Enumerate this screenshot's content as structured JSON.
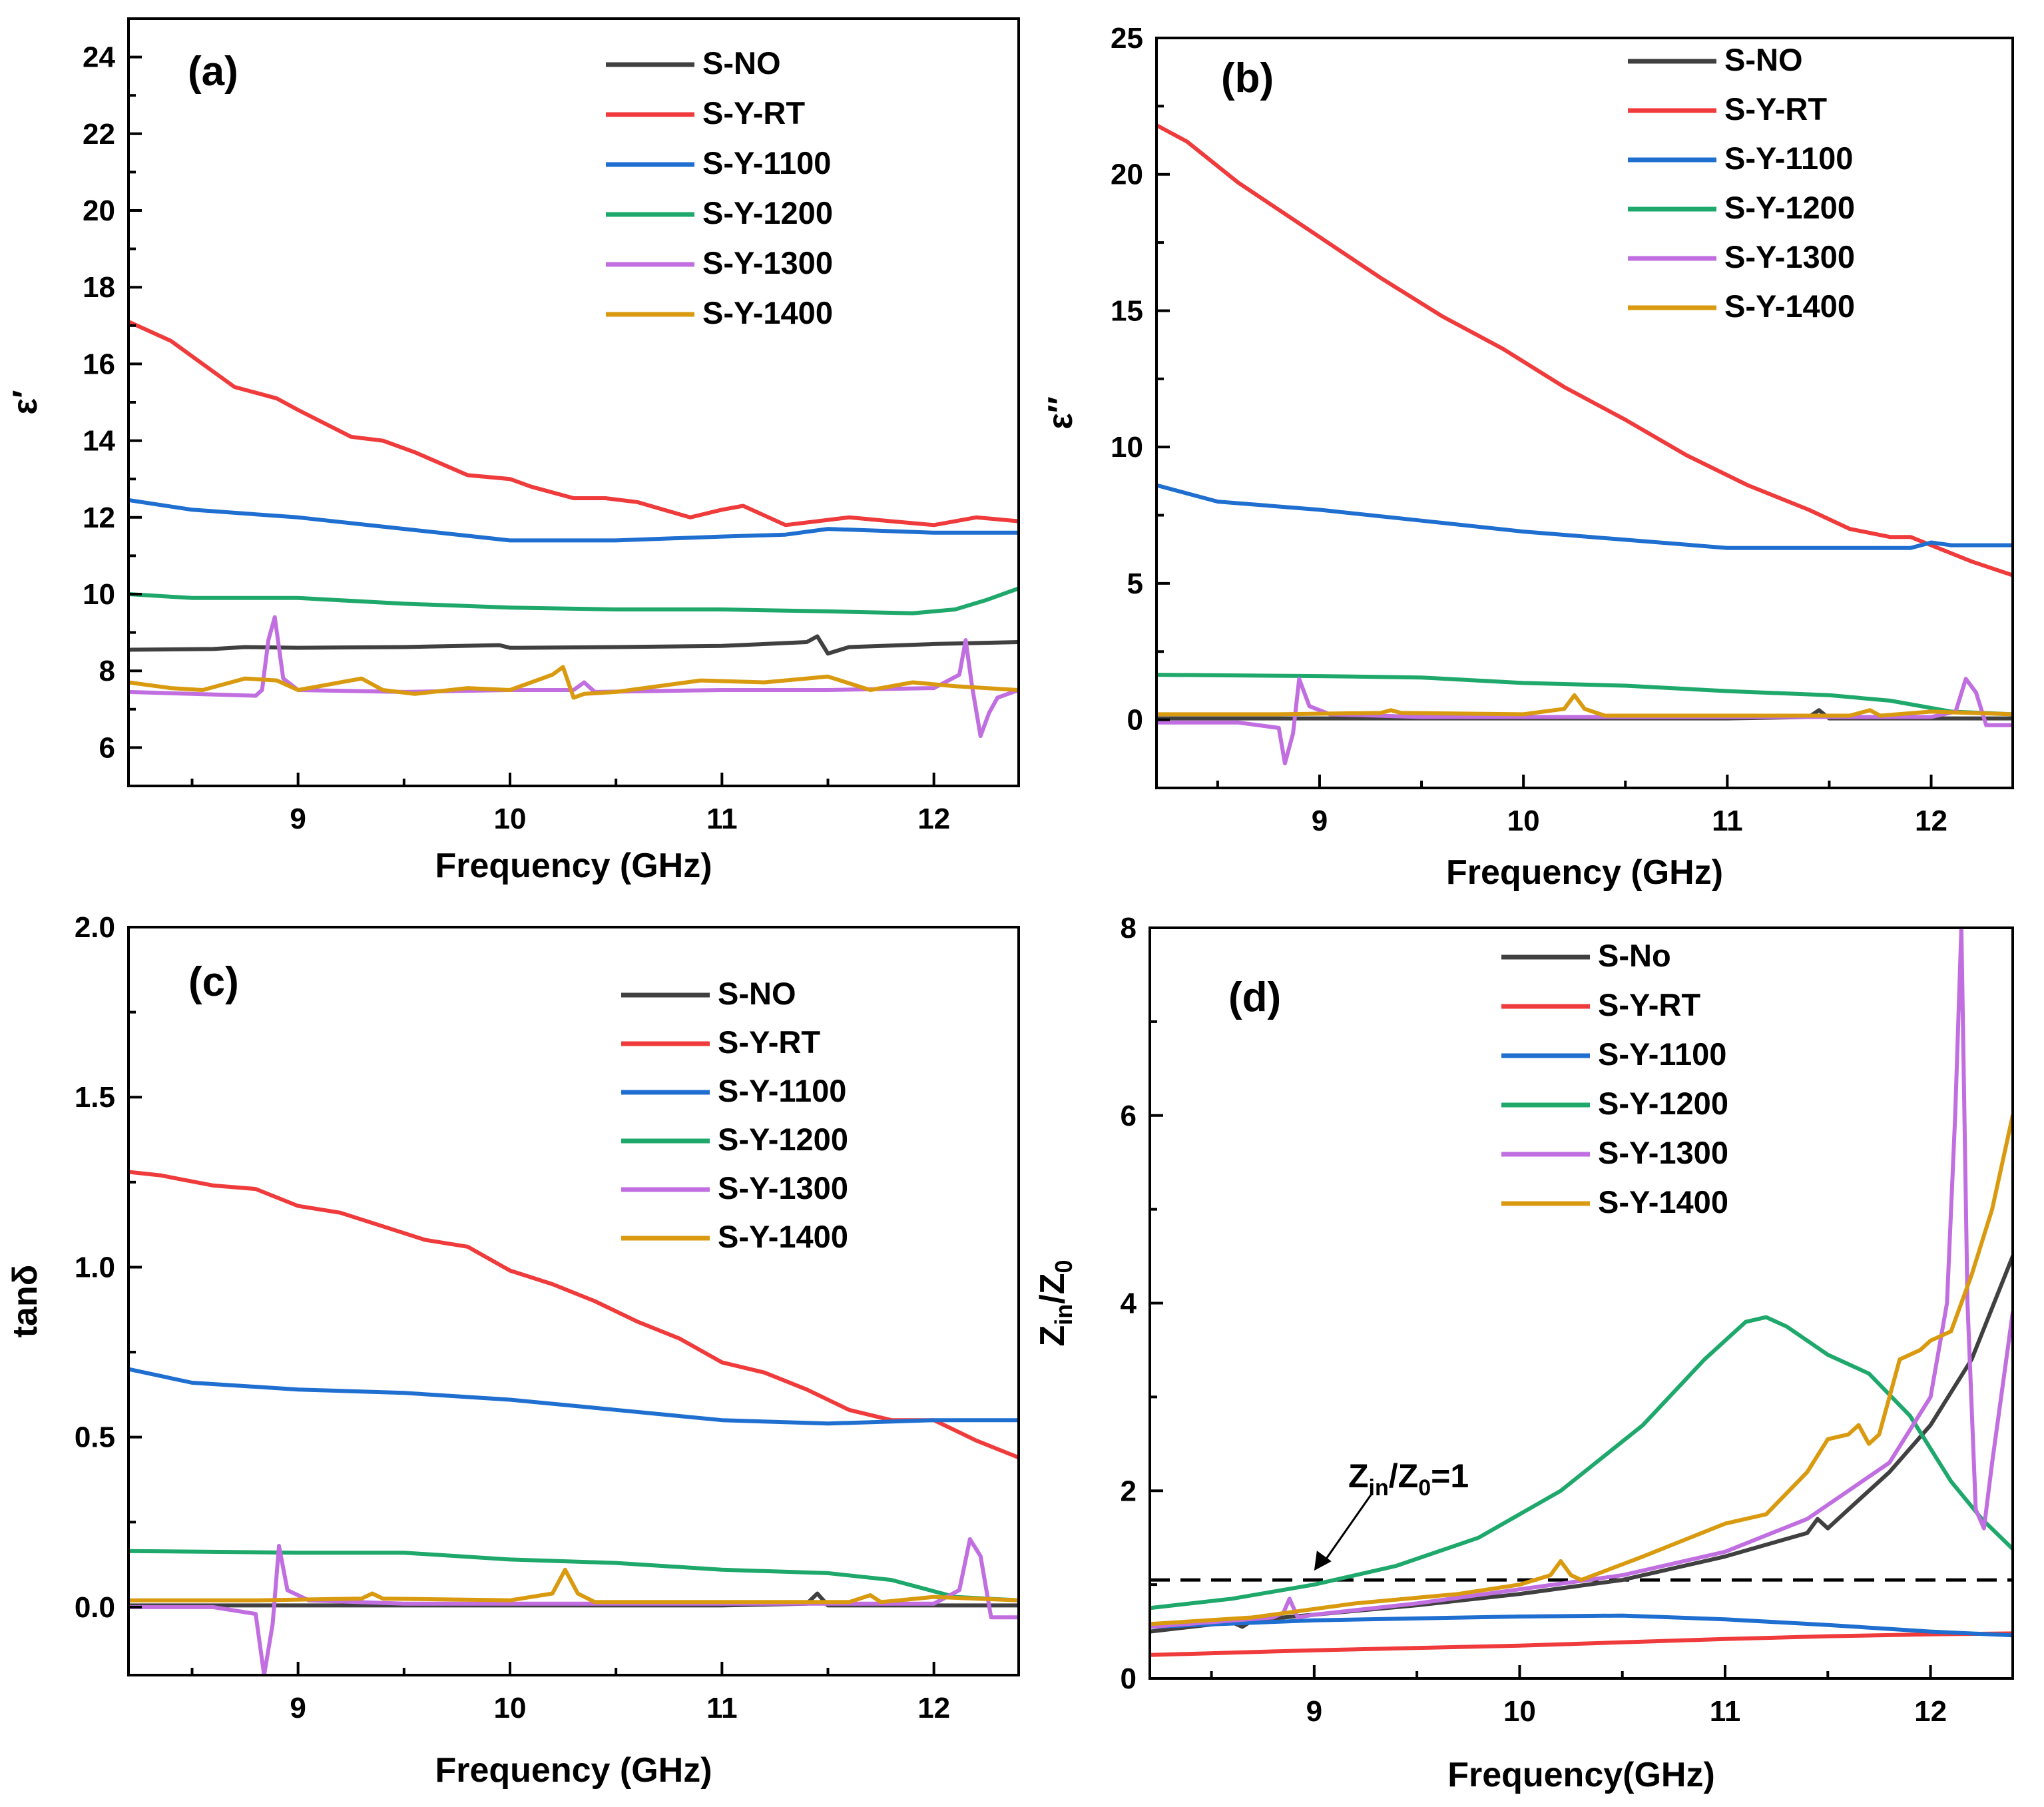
{
  "chart_data": [
    {
      "panel": "(a)",
      "type": "line",
      "xlabel": "Frequency (GHz)",
      "ylabel": "ε′",
      "xlim": [
        8.2,
        12.4
      ],
      "ylim": [
        5,
        25
      ],
      "xticks": [
        "9",
        "10",
        "11",
        "12"
      ],
      "yticks": [
        "6",
        "8",
        "10",
        "12",
        "14",
        "16",
        "18",
        "20",
        "22",
        "24"
      ],
      "legend": "top-right",
      "series": [
        {
          "name": "S-NO",
          "color": "#404040",
          "x": [
            8.2,
            8.6,
            8.75,
            9.0,
            9.5,
            9.95,
            10.0,
            10.05,
            10.5,
            11.0,
            11.4,
            11.45,
            11.5,
            11.6,
            12.0,
            12.4
          ],
          "y": [
            8.55,
            8.57,
            8.62,
            8.6,
            8.62,
            8.67,
            8.6,
            8.6,
            8.62,
            8.65,
            8.75,
            8.9,
            8.45,
            8.62,
            8.7,
            8.75
          ]
        },
        {
          "name": "S-Y-RT",
          "color": "#ef3b3b",
          "x": [
            8.2,
            8.4,
            8.5,
            8.7,
            8.9,
            9.0,
            9.25,
            9.4,
            9.55,
            9.8,
            10.0,
            10.1,
            10.3,
            10.45,
            10.6,
            10.85,
            11.0,
            11.1,
            11.3,
            11.6,
            11.8,
            12.0,
            12.2,
            12.4
          ],
          "y": [
            17.1,
            16.6,
            16.2,
            15.4,
            15.1,
            14.8,
            14.1,
            14.0,
            13.7,
            13.1,
            13.0,
            12.8,
            12.5,
            12.5,
            12.4,
            12.0,
            12.2,
            12.3,
            11.8,
            12.0,
            11.9,
            11.8,
            12.0,
            11.9
          ]
        },
        {
          "name": "S-Y-1100",
          "color": "#1f6fd1",
          "x": [
            8.2,
            8.5,
            9.0,
            9.5,
            10.0,
            10.5,
            11.0,
            11.3,
            11.5,
            12.0,
            12.4
          ],
          "y": [
            12.45,
            12.2,
            12.0,
            11.7,
            11.4,
            11.4,
            11.5,
            11.55,
            11.7,
            11.6,
            11.6
          ]
        },
        {
          "name": "S-Y-1200",
          "color": "#1ea86b",
          "x": [
            8.2,
            8.5,
            9.0,
            9.5,
            10.0,
            10.5,
            11.0,
            11.5,
            11.9,
            12.1,
            12.25,
            12.4
          ],
          "y": [
            10.0,
            9.9,
            9.9,
            9.75,
            9.65,
            9.6,
            9.6,
            9.55,
            9.5,
            9.6,
            9.85,
            10.15
          ]
        },
        {
          "name": "S-Y-1300",
          "color": "#c06ee0",
          "x": [
            8.2,
            8.5,
            8.8,
            8.83,
            8.86,
            8.89,
            8.93,
            9.0,
            9.5,
            10.0,
            10.3,
            10.35,
            10.4,
            11.0,
            11.5,
            12.0,
            12.12,
            12.15,
            12.18,
            12.22,
            12.26,
            12.3,
            12.4
          ],
          "y": [
            7.45,
            7.4,
            7.35,
            7.5,
            8.8,
            9.4,
            7.8,
            7.5,
            7.45,
            7.5,
            7.5,
            7.7,
            7.45,
            7.5,
            7.5,
            7.55,
            7.9,
            8.8,
            7.6,
            6.3,
            6.9,
            7.3,
            7.5
          ]
        },
        {
          "name": "S-Y-1400",
          "color": "#d99a10",
          "x": [
            8.2,
            8.4,
            8.55,
            8.75,
            8.9,
            9.0,
            9.3,
            9.4,
            9.55,
            9.8,
            10.0,
            10.2,
            10.25,
            10.3,
            10.35,
            10.5,
            10.9,
            11.2,
            11.5,
            11.7,
            11.9,
            12.1,
            12.4
          ],
          "y": [
            7.7,
            7.55,
            7.5,
            7.8,
            7.75,
            7.5,
            7.8,
            7.5,
            7.4,
            7.55,
            7.5,
            7.9,
            8.1,
            7.3,
            7.4,
            7.45,
            7.75,
            7.7,
            7.85,
            7.5,
            7.7,
            7.6,
            7.5
          ]
        }
      ]
    },
    {
      "panel": "(b)",
      "type": "line",
      "xlabel": "Frequency (GHz)",
      "ylabel": "ε″",
      "xlim": [
        8.2,
        12.4
      ],
      "ylim": [
        -2.5,
        25
      ],
      "xticks": [
        "9",
        "10",
        "11",
        "12"
      ],
      "yticks": [
        "0",
        "5",
        "10",
        "15",
        "20",
        "25"
      ],
      "legend": "top-right",
      "series": [
        {
          "name": "S-NO",
          "color": "#404040",
          "x": [
            8.2,
            9.0,
            10.0,
            11.0,
            11.4,
            11.45,
            11.5,
            12.0,
            12.4
          ],
          "y": [
            0.05,
            0.05,
            0.05,
            0.05,
            0.1,
            0.35,
            0.05,
            0.05,
            0.05
          ]
        },
        {
          "name": "S-Y-RT",
          "color": "#ef3b3b",
          "x": [
            8.2,
            8.35,
            8.6,
            8.9,
            9.3,
            9.6,
            9.9,
            10.2,
            10.5,
            10.8,
            11.1,
            11.4,
            11.6,
            11.8,
            11.9,
            12.0,
            12.2,
            12.4
          ],
          "y": [
            21.8,
            21.2,
            19.7,
            18.2,
            16.2,
            14.8,
            13.6,
            12.2,
            11.0,
            9.7,
            8.6,
            7.7,
            7.0,
            6.7,
            6.7,
            6.4,
            5.8,
            5.3
          ]
        },
        {
          "name": "S-Y-1100",
          "color": "#1f6fd1",
          "x": [
            8.2,
            8.5,
            9.0,
            9.5,
            10.0,
            10.5,
            11.0,
            11.5,
            11.9,
            12.0,
            12.1,
            12.4
          ],
          "y": [
            8.6,
            8.0,
            7.7,
            7.3,
            6.9,
            6.6,
            6.3,
            6.3,
            6.3,
            6.5,
            6.4,
            6.4
          ]
        },
        {
          "name": "S-Y-1200",
          "color": "#1ea86b",
          "x": [
            8.2,
            9.0,
            9.5,
            10.0,
            10.5,
            11.0,
            11.5,
            11.8,
            12.1,
            12.4
          ],
          "y": [
            1.65,
            1.6,
            1.55,
            1.35,
            1.25,
            1.05,
            0.9,
            0.7,
            0.3,
            0.2
          ]
        },
        {
          "name": "S-Y-1300",
          "color": "#c06ee0",
          "x": [
            8.2,
            8.6,
            8.8,
            8.83,
            8.87,
            8.9,
            8.95,
            9.05,
            9.5,
            10.0,
            11.0,
            12.0,
            12.12,
            12.17,
            12.22,
            12.27,
            12.3,
            12.4
          ],
          "y": [
            -0.1,
            -0.1,
            -0.3,
            -1.6,
            -0.5,
            1.5,
            0.5,
            0.2,
            0.1,
            0.1,
            0.1,
            0.1,
            0.3,
            1.5,
            1.0,
            -0.2,
            -0.2,
            -0.2
          ]
        },
        {
          "name": "S-Y-1400",
          "color": "#d99a10",
          "x": [
            8.2,
            8.8,
            9.3,
            9.35,
            9.4,
            10.0,
            10.2,
            10.25,
            10.3,
            10.4,
            11.0,
            11.6,
            11.7,
            11.75,
            12.0,
            12.4
          ],
          "y": [
            0.2,
            0.2,
            0.25,
            0.35,
            0.25,
            0.2,
            0.4,
            0.9,
            0.4,
            0.15,
            0.15,
            0.15,
            0.35,
            0.15,
            0.3,
            0.2
          ]
        }
      ]
    },
    {
      "panel": "(c)",
      "type": "line",
      "xlabel": "Frequency (GHz)",
      "ylabel": "tanδ",
      "xlim": [
        8.2,
        12.4
      ],
      "ylim": [
        -0.2,
        2.0
      ],
      "xticks": [
        "9",
        "10",
        "11",
        "12"
      ],
      "yticks": [
        "0.0",
        "0.5",
        "1.0",
        "1.5",
        "2.0"
      ],
      "legend": "top-right",
      "series": [
        {
          "name": "S-NO",
          "color": "#404040",
          "x": [
            8.2,
            9.0,
            10.0,
            11.0,
            11.4,
            11.45,
            11.5,
            12.0,
            12.4
          ],
          "y": [
            0.005,
            0.005,
            0.005,
            0.005,
            0.01,
            0.04,
            0.005,
            0.005,
            0.005
          ]
        },
        {
          "name": "S-Y-RT",
          "color": "#ef3b3b",
          "x": [
            8.2,
            8.35,
            8.6,
            8.8,
            9.0,
            9.2,
            9.4,
            9.6,
            9.8,
            10.0,
            10.2,
            10.4,
            10.6,
            10.8,
            11.0,
            11.2,
            11.4,
            11.6,
            11.8,
            12.0,
            12.2,
            12.4
          ],
          "y": [
            1.28,
            1.27,
            1.24,
            1.23,
            1.18,
            1.16,
            1.12,
            1.08,
            1.06,
            0.99,
            0.95,
            0.9,
            0.84,
            0.79,
            0.72,
            0.69,
            0.64,
            0.58,
            0.55,
            0.55,
            0.49,
            0.44
          ]
        },
        {
          "name": "S-Y-1100",
          "color": "#1f6fd1",
          "x": [
            8.2,
            8.5,
            9.0,
            9.5,
            10.0,
            10.5,
            11.0,
            11.5,
            12.0,
            12.4
          ],
          "y": [
            0.7,
            0.66,
            0.64,
            0.63,
            0.61,
            0.58,
            0.55,
            0.54,
            0.55,
            0.55
          ]
        },
        {
          "name": "S-Y-1200",
          "color": "#1ea86b",
          "x": [
            8.2,
            9.0,
            9.5,
            10.0,
            10.5,
            11.0,
            11.5,
            11.8,
            12.1,
            12.4
          ],
          "y": [
            0.165,
            0.16,
            0.16,
            0.14,
            0.13,
            0.11,
            0.1,
            0.08,
            0.03,
            0.02
          ]
        },
        {
          "name": "S-Y-1300",
          "color": "#c06ee0",
          "x": [
            8.2,
            8.6,
            8.8,
            8.84,
            8.88,
            8.91,
            8.95,
            9.05,
            9.5,
            10.0,
            11.0,
            12.0,
            12.12,
            12.17,
            12.22,
            12.27,
            12.3,
            12.4
          ],
          "y": [
            0.0,
            0.0,
            -0.02,
            -0.2,
            -0.05,
            0.18,
            0.05,
            0.02,
            0.01,
            0.01,
            0.01,
            0.01,
            0.05,
            0.2,
            0.15,
            -0.03,
            -0.03,
            -0.03
          ]
        },
        {
          "name": "S-Y-1400",
          "color": "#d99a10",
          "x": [
            8.2,
            8.8,
            9.3,
            9.35,
            9.4,
            10.0,
            10.2,
            10.26,
            10.32,
            10.4,
            11.0,
            11.6,
            11.7,
            11.75,
            12.0,
            12.4
          ],
          "y": [
            0.02,
            0.02,
            0.025,
            0.04,
            0.025,
            0.02,
            0.04,
            0.11,
            0.04,
            0.015,
            0.015,
            0.015,
            0.035,
            0.015,
            0.03,
            0.02
          ]
        }
      ]
    },
    {
      "panel": "(d)",
      "type": "line",
      "xlabel": "Frequency(GHz)",
      "ylabel": "Zin/Z0",
      "xlim": [
        8.2,
        12.4
      ],
      "ylim": [
        0,
        8
      ],
      "xticks": [
        "9",
        "10",
        "11",
        "12"
      ],
      "yticks": [
        "0",
        "2",
        "4",
        "6",
        "8"
      ],
      "legend": "top-right",
      "reference_line": {
        "y": 1.05,
        "label": "Zin/Z0=1"
      },
      "series": [
        {
          "name": "S-No",
          "color": "#404040",
          "x": [
            8.2,
            8.6,
            8.65,
            8.7,
            9.0,
            9.5,
            10.0,
            10.5,
            11.0,
            11.4,
            11.45,
            11.5,
            11.6,
            11.8,
            12.0,
            12.2,
            12.4
          ],
          "y": [
            0.5,
            0.6,
            0.55,
            0.62,
            0.68,
            0.78,
            0.9,
            1.05,
            1.3,
            1.55,
            1.7,
            1.6,
            1.8,
            2.2,
            2.7,
            3.4,
            4.5
          ]
        },
        {
          "name": "S-Y-RT",
          "color": "#ef3b3b",
          "x": [
            8.2,
            9.0,
            10.0,
            11.0,
            11.5,
            12.0,
            12.4
          ],
          "y": [
            0.25,
            0.3,
            0.35,
            0.42,
            0.45,
            0.47,
            0.48
          ]
        },
        {
          "name": "S-Y-1100",
          "color": "#1f6fd1",
          "x": [
            8.2,
            9.0,
            10.0,
            10.5,
            11.0,
            11.5,
            12.0,
            12.4
          ],
          "y": [
            0.55,
            0.62,
            0.66,
            0.67,
            0.63,
            0.57,
            0.5,
            0.46
          ]
        },
        {
          "name": "S-Y-1200",
          "color": "#1ea86b",
          "x": [
            8.2,
            8.6,
            9.0,
            9.4,
            9.8,
            10.2,
            10.6,
            10.9,
            11.1,
            11.2,
            11.3,
            11.5,
            11.7,
            11.9,
            12.1,
            12.25,
            12.4
          ],
          "y": [
            0.75,
            0.85,
            1.0,
            1.2,
            1.5,
            2.0,
            2.7,
            3.4,
            3.8,
            3.85,
            3.75,
            3.45,
            3.25,
            2.8,
            2.1,
            1.7,
            1.38
          ]
        },
        {
          "name": "S-Y-1300",
          "color": "#c06ee0",
          "x": [
            8.2,
            8.8,
            8.85,
            8.88,
            8.92,
            9.0,
            9.5,
            10.0,
            10.5,
            11.0,
            11.4,
            11.6,
            11.8,
            12.0,
            12.08,
            12.12,
            12.15,
            12.18,
            12.22,
            12.26,
            12.3,
            12.4
          ],
          "y": [
            0.55,
            0.65,
            0.7,
            0.85,
            0.65,
            0.68,
            0.8,
            0.95,
            1.1,
            1.35,
            1.7,
            2.0,
            2.3,
            3.0,
            4.0,
            6.0,
            8.0,
            4.0,
            1.8,
            1.6,
            2.3,
            3.9
          ]
        },
        {
          "name": "S-Y-1400",
          "color": "#d99a10",
          "x": [
            8.2,
            8.7,
            9.2,
            9.7,
            10.0,
            10.15,
            10.2,
            10.25,
            10.3,
            10.6,
            11.0,
            11.2,
            11.4,
            11.5,
            11.6,
            11.65,
            11.7,
            11.75,
            11.8,
            11.85,
            11.95,
            12.0,
            12.1,
            12.2,
            12.3,
            12.4
          ],
          "y": [
            0.58,
            0.65,
            0.8,
            0.9,
            1.0,
            1.1,
            1.25,
            1.1,
            1.05,
            1.3,
            1.65,
            1.75,
            2.2,
            2.55,
            2.6,
            2.7,
            2.5,
            2.6,
            3.0,
            3.4,
            3.5,
            3.6,
            3.7,
            4.3,
            5.0,
            6.0
          ]
        }
      ]
    }
  ]
}
